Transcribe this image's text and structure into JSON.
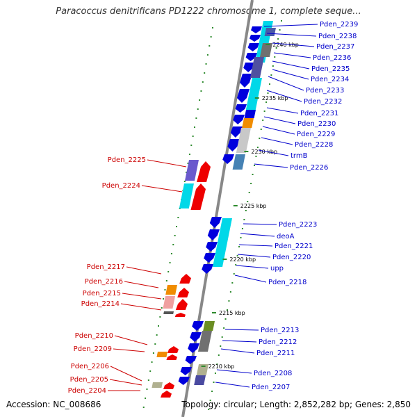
{
  "title": "Paracoccus denitrificans PD1222 chromosome 1, complete seque...",
  "accession": "Accession: NC_008686",
  "topology": "Topology: circular; Length: 2,852,282 bp; Genes: 2,850",
  "colors": {
    "backbone": "#888888",
    "forward_label": "#cc0000",
    "reverse_label": "#0000cc",
    "forward_gene": "#ee0000",
    "reverse_gene": "#0000dd",
    "tick": "#2e8b2e"
  },
  "ticks": [
    "2240 kbp",
    "2235 kbp",
    "2230 kbp",
    "2225 kbp",
    "2220 kbp",
    "2215 kbp",
    "2210 kbp"
  ],
  "reverse_labels": [
    "Pden_2239",
    "Pden_2238",
    "Pden_2237",
    "Pden_2236",
    "Pden_2235",
    "Pden_2234",
    "Pden_2233",
    "Pden_2232",
    "Pden_2231",
    "Pden_2230",
    "Pden_2229",
    "Pden_2228",
    "trmB",
    "Pden_2226",
    "Pden_2223",
    "deoA",
    "Pden_2221",
    "Pden_2220",
    "upp",
    "Pden_2218",
    "Pden_2213",
    "Pden_2212",
    "Pden_2211",
    "Pden_2208",
    "Pden_2207"
  ],
  "forward_labels": [
    "Pden_2225",
    "Pden_2224",
    "Pden_2217",
    "Pden_2216",
    "Pden_2215",
    "Pden_2214",
    "Pden_2210",
    "Pden_2209",
    "Pden_2206",
    "Pden_2205",
    "Pden_2204"
  ]
}
